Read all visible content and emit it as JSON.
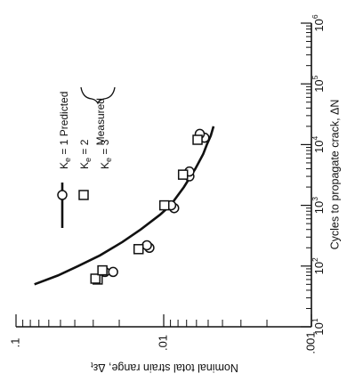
{
  "chart_data": {
    "type": "scatter",
    "orientation": "rotated-90-cw",
    "title": "",
    "xlabel": "Cycles to propagate crack, ΔN",
    "ylabel": "Nominal total strain range, Δε_t",
    "xscale": "log",
    "yscale": "log",
    "xlim": [
      10,
      1000000
    ],
    "ylim": [
      0.001,
      0.1
    ],
    "x_ticks": [
      {
        "value": 10,
        "base": "10",
        "exp": "1"
      },
      {
        "value": 100,
        "base": "10",
        "exp": "2"
      },
      {
        "value": 1000,
        "base": "10",
        "exp": "3"
      },
      {
        "value": 10000,
        "base": "10",
        "exp": "4"
      },
      {
        "value": 100000,
        "base": "10",
        "exp": "5"
      },
      {
        "value": 1000000,
        "base": "10",
        "exp": "6"
      }
    ],
    "y_ticks": [
      {
        "value": 0.1,
        "label": ".1"
      },
      {
        "value": 0.01,
        "label": ".01"
      },
      {
        "value": 0.001,
        "label": ".001"
      }
    ],
    "grid": false,
    "legend_position": "top-right",
    "series": [
      {
        "legend": "K_e = 1  Predicted",
        "kind": "line",
        "x": [
          50,
          70,
          100,
          150,
          250,
          400,
          700,
          1000,
          2000,
          4000,
          7000,
          10000,
          14000,
          20000
        ],
        "y": [
          0.075,
          0.052,
          0.038,
          0.027,
          0.019,
          0.0143,
          0.0106,
          0.009,
          0.0073,
          0.0061,
          0.0054,
          0.0051,
          0.0048,
          0.0046
        ]
      },
      {
        "legend": "K_e = 2",
        "kind": "circle",
        "x": [
          80,
          80,
          200,
          220,
          900,
          1000,
          3000,
          3600,
          13000,
          15000
        ],
        "y": [
          0.025,
          0.022,
          0.0125,
          0.013,
          0.0085,
          0.0089,
          0.0067,
          0.0067,
          0.0053,
          0.0057
        ]
      },
      {
        "legend": "K_e = 3",
        "kind": "square",
        "x": [
          60,
          62,
          85,
          190,
          1000,
          3200,
          12000
        ],
        "y": [
          0.028,
          0.029,
          0.026,
          0.0148,
          0.0099,
          0.0074,
          0.0059
        ]
      }
    ],
    "measured_label": "Measured"
  }
}
